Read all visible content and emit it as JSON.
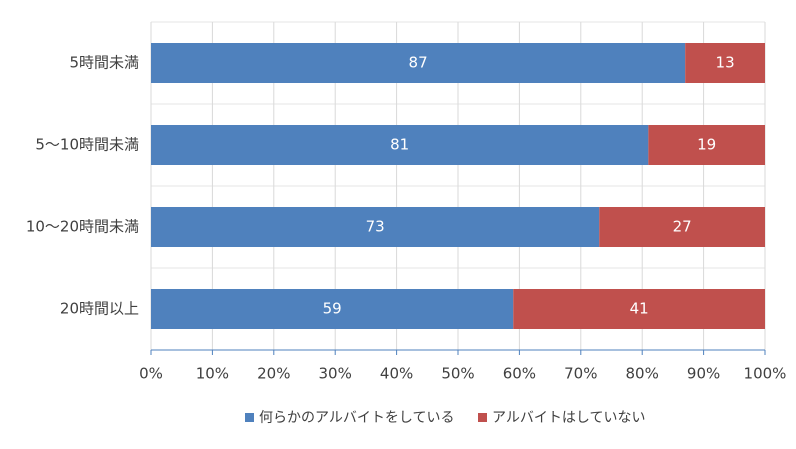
{
  "chart_data": {
    "type": "bar",
    "orientation": "horizontal",
    "stacked": true,
    "categories": [
      "5時間未満",
      "5～10時間未満",
      "10～20時間未満",
      "20時間以上"
    ],
    "series": [
      {
        "name": "何らかのアルバイトをしている",
        "color": "#4f81bd",
        "values": [
          87,
          81,
          73,
          59
        ]
      },
      {
        "name": "アルバイトはしていない",
        "color": "#c0504d",
        "values": [
          13,
          19,
          27,
          41
        ]
      }
    ],
    "xlim": [
      0,
      100
    ],
    "xticks": [
      {
        "value": 0,
        "label": "0%"
      },
      {
        "value": 10,
        "label": "10%"
      },
      {
        "value": 20,
        "label": "20%"
      },
      {
        "value": 30,
        "label": "30%"
      },
      {
        "value": 40,
        "label": "40%"
      },
      {
        "value": 50,
        "label": "50%"
      },
      {
        "value": 60,
        "label": "60%"
      },
      {
        "value": 70,
        "label": "70%"
      },
      {
        "value": 80,
        "label": "80%"
      },
      {
        "value": 90,
        "label": "90%"
      },
      {
        "value": 100,
        "label": "100%"
      }
    ],
    "grid": true,
    "legend": "bottom"
  }
}
